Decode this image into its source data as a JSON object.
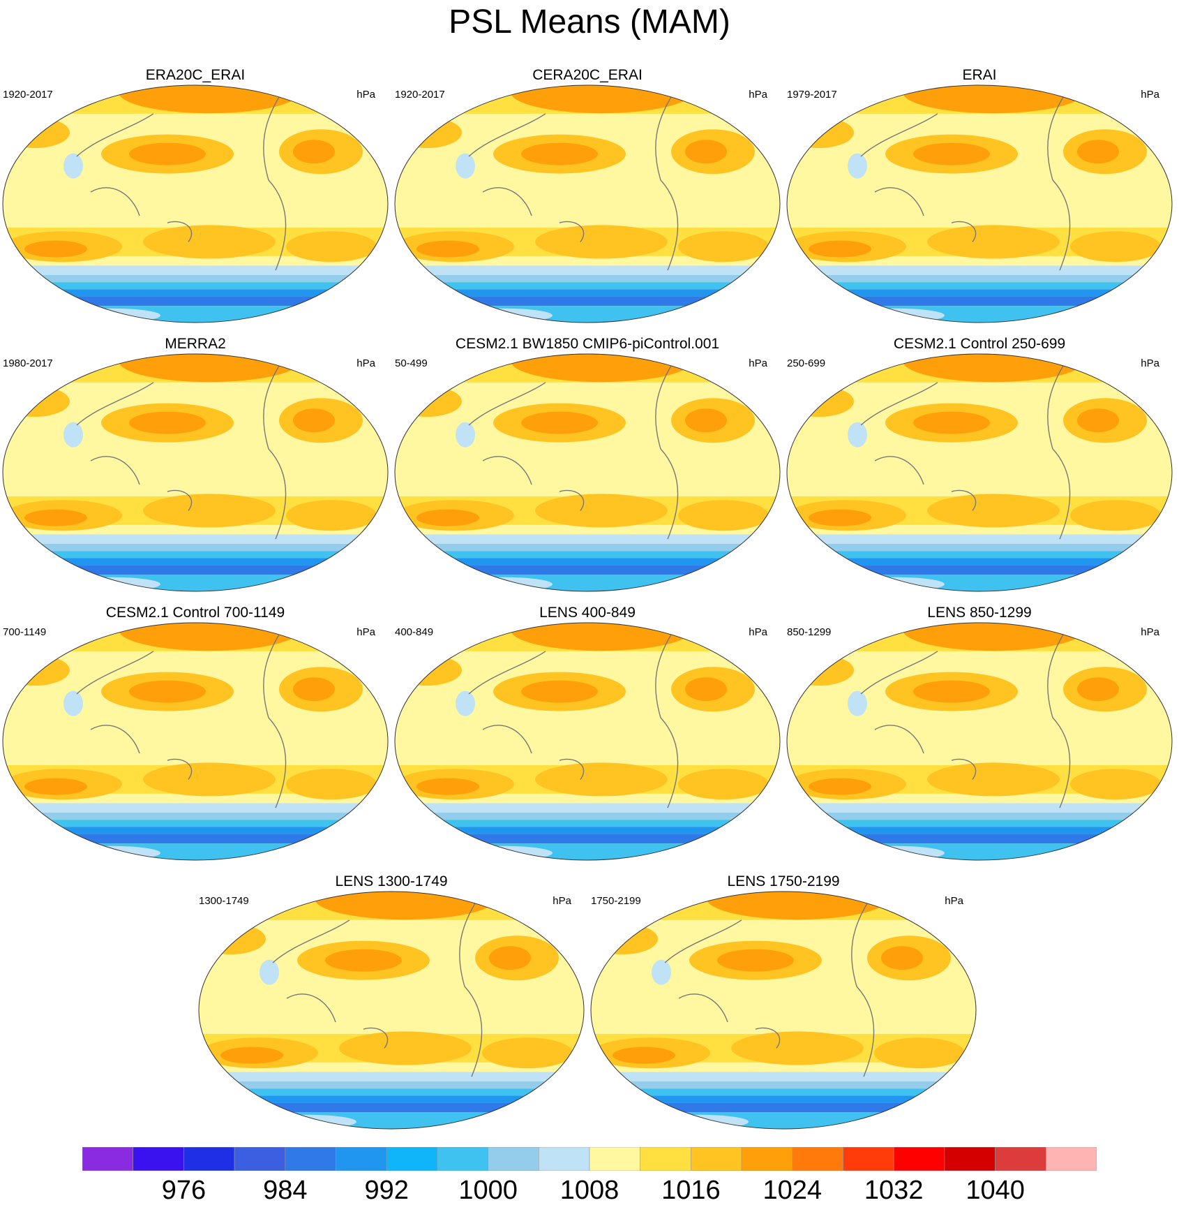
{
  "title": "PSL Means (MAM)",
  "units": "hPa",
  "panels": [
    {
      "title": "ERA20C_ERAI",
      "period": "1920-2017"
    },
    {
      "title": "CERA20C_ERAI",
      "period": "1920-2017"
    },
    {
      "title": "ERAI",
      "period": "1979-2017"
    },
    {
      "title": "MERRA2",
      "period": "1980-2017"
    },
    {
      "title": "CESM2.1 BW1850 CMIP6-piControl.001",
      "period": "50-499"
    },
    {
      "title": "CESM2.1 Control 250-699",
      "period": "250-699"
    },
    {
      "title": "CESM2.1 Control 700-1149",
      "period": "700-1149"
    },
    {
      "title": "LENS 400-849",
      "period": "400-849"
    },
    {
      "title": "LENS 850-1299",
      "period": "850-1299"
    },
    {
      "title": "LENS 1300-1749",
      "period": "1300-1749"
    },
    {
      "title": "LENS 1750-2199",
      "period": "1750-2199"
    }
  ],
  "colorbar": {
    "colors": [
      "#8a2be2",
      "#3a12f0",
      "#1f2fe6",
      "#3b5fe0",
      "#2f7ae8",
      "#2196f0",
      "#10b4f8",
      "#40c2f0",
      "#94ccec",
      "#c0e2f6",
      "#fff8a0",
      "#ffe040",
      "#ffc421",
      "#ff9f0a",
      "#ff7a0a",
      "#ff3c0a",
      "#ff0000",
      "#d40000",
      "#dc3c3c",
      "#ffb4b4"
    ],
    "labels": [
      "976",
      "984",
      "992",
      "1000",
      "1008",
      "1016",
      "1024",
      "1032",
      "1040"
    ]
  }
}
